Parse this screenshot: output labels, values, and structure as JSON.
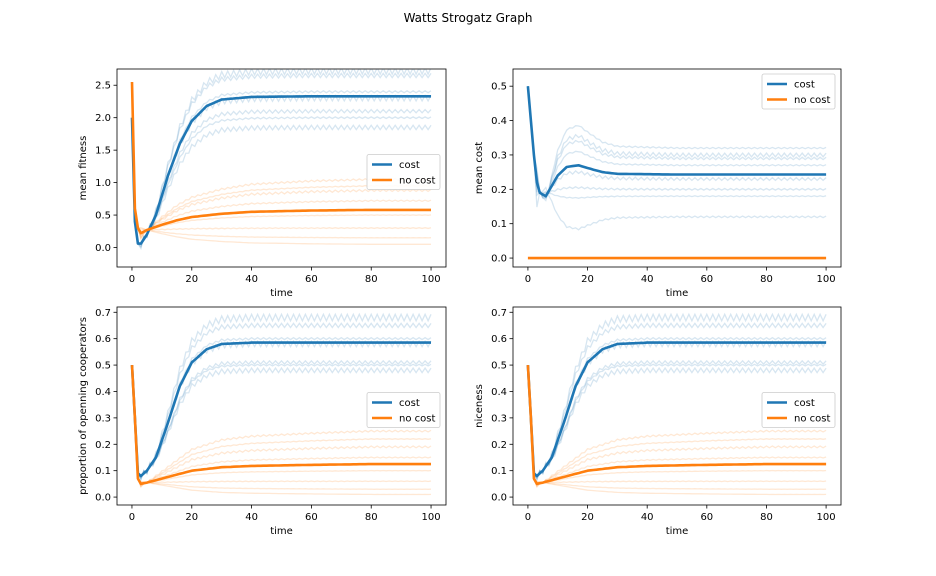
{
  "figure": {
    "title": "Watts Strogatz Graph",
    "colors": {
      "cost": "#1f77b4",
      "no_cost": "#ff7f0e",
      "frame": "#000000",
      "legend_edge": "#cccccc"
    }
  },
  "chart_data": [
    {
      "type": "line",
      "title": "",
      "xlabel": "time",
      "ylabel": "mean fitness",
      "xlim": [
        -5,
        105
      ],
      "ylim": [
        -0.3,
        2.75
      ],
      "xticks": [
        0,
        20,
        40,
        60,
        80,
        100
      ],
      "yticks": [
        0.0,
        0.5,
        1.0,
        1.5,
        2.0,
        2.5
      ],
      "ytick_labels": [
        "0.0",
        "0.5",
        "1.0",
        "1.5",
        "2.0",
        "2.5"
      ],
      "legend_loc": "center-right",
      "grid": false,
      "series": [
        {
          "name": "cost",
          "color": "#1f77b4",
          "key": [
            [
              0,
              2.0
            ],
            [
              1,
              0.4
            ],
            [
              2,
              0.06
            ],
            [
              3,
              0.06
            ],
            [
              5,
              0.2
            ],
            [
              8,
              0.5
            ],
            [
              12,
              1.1
            ],
            [
              16,
              1.6
            ],
            [
              20,
              1.95
            ],
            [
              25,
              2.18
            ],
            [
              30,
              2.28
            ],
            [
              40,
              2.32
            ],
            [
              60,
              2.33
            ],
            [
              80,
              2.33
            ],
            [
              100,
              2.33
            ]
          ]
        },
        {
          "name": "no cost",
          "color": "#ff7f0e",
          "key": [
            [
              0,
              2.55
            ],
            [
              1,
              0.6
            ],
            [
              2,
              0.3
            ],
            [
              3,
              0.22
            ],
            [
              5,
              0.27
            ],
            [
              10,
              0.35
            ],
            [
              15,
              0.42
            ],
            [
              20,
              0.47
            ],
            [
              30,
              0.52
            ],
            [
              40,
              0.55
            ],
            [
              60,
              0.57
            ],
            [
              80,
              0.58
            ],
            [
              100,
              0.58
            ]
          ]
        }
      ],
      "runs_cost": [
        1.85,
        2.0,
        2.1,
        2.3,
        2.4,
        2.65,
        2.72
      ],
      "runs_no_cost": [
        0.05,
        0.15,
        0.3,
        0.5,
        0.72,
        0.88,
        0.95,
        1.05
      ]
    },
    {
      "type": "line",
      "title": "",
      "xlabel": "time",
      "ylabel": "mean cost",
      "xlim": [
        -5,
        105
      ],
      "ylim": [
        -0.026,
        0.55
      ],
      "xticks": [
        0,
        20,
        40,
        60,
        80,
        100
      ],
      "yticks": [
        0.0,
        0.1,
        0.2,
        0.3,
        0.4,
        0.5
      ],
      "ytick_labels": [
        "0.0",
        "0.1",
        "0.2",
        "0.3",
        "0.4",
        "0.5"
      ],
      "legend_loc": "upper-right",
      "grid": false,
      "series": [
        {
          "name": "cost",
          "color": "#1f77b4",
          "key": [
            [
              0,
              0.5
            ],
            [
              1,
              0.4
            ],
            [
              2,
              0.3
            ],
            [
              3,
              0.22
            ],
            [
              4,
              0.19
            ],
            [
              6,
              0.18
            ],
            [
              8,
              0.21
            ],
            [
              10,
              0.24
            ],
            [
              13,
              0.265
            ],
            [
              17,
              0.27
            ],
            [
              20,
              0.262
            ],
            [
              25,
              0.25
            ],
            [
              30,
              0.245
            ],
            [
              50,
              0.243
            ],
            [
              100,
              0.243
            ]
          ]
        },
        {
          "name": "no cost",
          "color": "#ff7f0e",
          "key": [
            [
              0,
              0.0
            ],
            [
              100,
              0.0
            ]
          ]
        }
      ],
      "runs_cost": [
        0.12,
        0.18,
        0.2,
        0.23,
        0.27,
        0.29,
        0.3,
        0.32
      ],
      "runs_no_cost": []
    },
    {
      "type": "line",
      "title": "",
      "xlabel": "time",
      "ylabel": "proportion of openning cooperators",
      "xlim": [
        -5,
        105
      ],
      "ylim": [
        -0.03,
        0.72
      ],
      "xticks": [
        0,
        20,
        40,
        60,
        80,
        100
      ],
      "yticks": [
        0.0,
        0.1,
        0.2,
        0.3,
        0.4,
        0.5,
        0.6,
        0.7
      ],
      "ytick_labels": [
        "0.0",
        "0.1",
        "0.2",
        "0.3",
        "0.4",
        "0.5",
        "0.6",
        "0.7"
      ],
      "legend_loc": "center-right",
      "grid": false,
      "series": [
        {
          "name": "cost",
          "color": "#1f77b4",
          "key": [
            [
              0,
              0.5
            ],
            [
              1,
              0.3
            ],
            [
              2,
              0.09
            ],
            [
              3,
              0.08
            ],
            [
              5,
              0.1
            ],
            [
              8,
              0.15
            ],
            [
              12,
              0.28
            ],
            [
              16,
              0.42
            ],
            [
              20,
              0.51
            ],
            [
              25,
              0.56
            ],
            [
              30,
              0.58
            ],
            [
              40,
              0.585
            ],
            [
              60,
              0.585
            ],
            [
              100,
              0.585
            ]
          ]
        },
        {
          "name": "no cost",
          "color": "#ff7f0e",
          "key": [
            [
              0,
              0.5
            ],
            [
              1,
              0.3
            ],
            [
              2,
              0.07
            ],
            [
              3,
              0.05
            ],
            [
              5,
              0.055
            ],
            [
              10,
              0.07
            ],
            [
              15,
              0.085
            ],
            [
              20,
              0.1
            ],
            [
              30,
              0.113
            ],
            [
              40,
              0.118
            ],
            [
              60,
              0.122
            ],
            [
              80,
              0.125
            ],
            [
              100,
              0.125
            ]
          ]
        }
      ],
      "runs_cost": [
        0.48,
        0.5,
        0.51,
        0.58,
        0.6,
        0.65,
        0.68
      ],
      "runs_no_cost": [
        0.01,
        0.03,
        0.06,
        0.1,
        0.15,
        0.19,
        0.22,
        0.25
      ]
    },
    {
      "type": "line",
      "title": "",
      "xlabel": "time",
      "ylabel": "niceness",
      "xlim": [
        -5,
        105
      ],
      "ylim": [
        -0.03,
        0.72
      ],
      "xticks": [
        0,
        20,
        40,
        60,
        80,
        100
      ],
      "yticks": [
        0.0,
        0.1,
        0.2,
        0.3,
        0.4,
        0.5,
        0.6,
        0.7
      ],
      "ytick_labels": [
        "0.0",
        "0.1",
        "0.2",
        "0.3",
        "0.4",
        "0.5",
        "0.6",
        "0.7"
      ],
      "legend_loc": "center-right",
      "grid": false,
      "series": [
        {
          "name": "cost",
          "color": "#1f77b4",
          "key": [
            [
              0,
              0.5
            ],
            [
              1,
              0.3
            ],
            [
              2,
              0.09
            ],
            [
              3,
              0.08
            ],
            [
              5,
              0.1
            ],
            [
              8,
              0.15
            ],
            [
              12,
              0.28
            ],
            [
              16,
              0.42
            ],
            [
              20,
              0.51
            ],
            [
              25,
              0.56
            ],
            [
              30,
              0.58
            ],
            [
              40,
              0.585
            ],
            [
              60,
              0.585
            ],
            [
              100,
              0.585
            ]
          ]
        },
        {
          "name": "no cost",
          "color": "#ff7f0e",
          "key": [
            [
              0,
              0.5
            ],
            [
              1,
              0.3
            ],
            [
              2,
              0.07
            ],
            [
              3,
              0.05
            ],
            [
              5,
              0.055
            ],
            [
              10,
              0.07
            ],
            [
              15,
              0.085
            ],
            [
              20,
              0.1
            ],
            [
              30,
              0.113
            ],
            [
              40,
              0.118
            ],
            [
              60,
              0.122
            ],
            [
              80,
              0.125
            ],
            [
              100,
              0.125
            ]
          ]
        }
      ],
      "runs_cost": [
        0.48,
        0.5,
        0.51,
        0.58,
        0.6,
        0.65,
        0.68
      ],
      "runs_no_cost": [
        0.01,
        0.03,
        0.06,
        0.1,
        0.15,
        0.19,
        0.22,
        0.25
      ]
    }
  ]
}
